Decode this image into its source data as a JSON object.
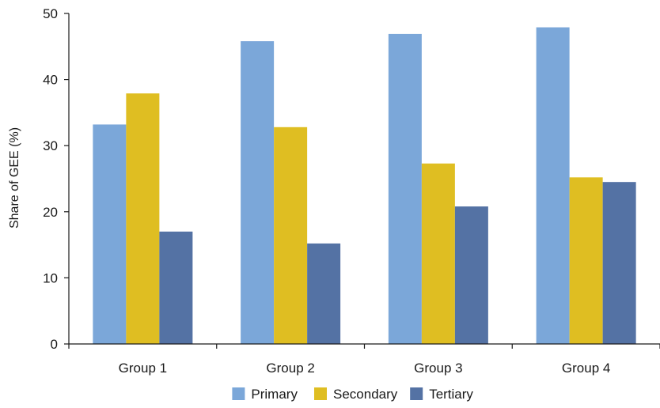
{
  "chart_data": {
    "type": "bar",
    "title": "",
    "xlabel": "",
    "ylabel": "Share of GEE (%)",
    "ylim": [
      0,
      50
    ],
    "yticks": [
      0,
      10,
      20,
      30,
      40,
      50
    ],
    "categories": [
      "Group 1",
      "Group 2",
      "Group 3",
      "Group 4"
    ],
    "series": [
      {
        "name": "Primary",
        "color": "#7ba7d9",
        "values": [
          33.2,
          45.8,
          46.9,
          47.9
        ]
      },
      {
        "name": "Secondary",
        "color": "#dfbe22",
        "values": [
          37.9,
          32.8,
          27.3,
          25.2
        ]
      },
      {
        "name": "Tertiary",
        "color": "#5472a4",
        "values": [
          17.0,
          15.2,
          20.8,
          24.5
        ]
      }
    ],
    "grid": false,
    "legend_position": "bottom-center"
  }
}
